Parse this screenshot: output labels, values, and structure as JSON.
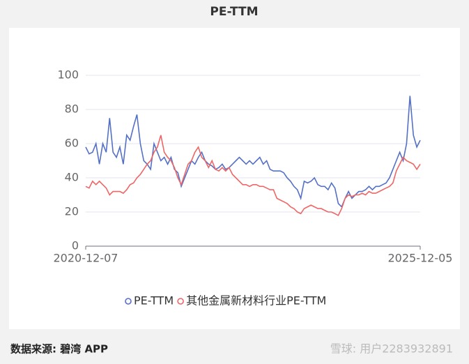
{
  "title": "PE-TTM",
  "footer": {
    "source": "数据来源: 碧湾 APP",
    "watermark": "雪球: 用户2283932891"
  },
  "chart_data": {
    "type": "line",
    "categories": [
      "2020-12-07",
      null,
      null,
      null,
      null,
      null,
      null,
      null,
      null,
      null,
      null,
      null,
      null,
      null,
      null,
      null,
      null,
      null,
      null,
      null,
      null,
      null,
      null,
      null,
      null,
      null,
      null,
      null,
      null,
      null,
      null,
      null,
      null,
      null,
      null,
      null,
      null,
      null,
      null,
      null,
      null,
      null,
      null,
      null,
      null,
      null,
      null,
      null,
      null,
      null,
      null,
      null,
      null,
      null,
      null,
      null,
      null,
      null,
      null,
      null,
      null,
      null,
      null,
      null,
      null,
      null,
      null,
      null,
      null,
      null,
      null,
      null,
      null,
      null,
      null,
      null,
      null,
      null,
      null,
      null,
      null,
      null,
      null,
      null,
      null,
      null,
      null,
      null,
      null,
      null,
      null,
      null,
      null,
      null,
      null,
      null,
      null,
      null,
      "2025-12-05"
    ],
    "series": [
      {
        "name": "PE-TTM",
        "color": "#5470c6",
        "values": [
          58,
          54,
          55,
          60,
          48,
          60,
          55,
          75,
          55,
          52,
          58,
          48,
          65,
          62,
          70,
          77,
          60,
          50,
          48,
          45,
          60,
          55,
          50,
          52,
          48,
          52,
          45,
          43,
          35,
          40,
          45,
          50,
          48,
          52,
          55,
          50,
          48,
          47,
          45,
          46,
          48,
          45,
          46,
          48,
          50,
          52,
          50,
          48,
          50,
          48,
          50,
          52,
          48,
          50,
          45,
          44,
          44,
          44,
          43,
          40,
          38,
          35,
          33,
          28,
          38,
          37,
          38,
          40,
          36,
          35,
          35,
          33,
          37,
          34,
          25,
          23,
          28,
          32,
          28,
          30,
          32,
          32,
          33,
          35,
          33,
          35,
          35,
          36,
          37,
          40,
          45,
          50,
          55,
          50,
          60,
          88,
          65,
          58,
          62
        ]
      },
      {
        "name": "其他金属新材料行业PE-TTM",
        "color": "#ee6666",
        "values": [
          35,
          34,
          38,
          36,
          38,
          36,
          34,
          30,
          32,
          32,
          32,
          31,
          33,
          36,
          37,
          40,
          42,
          45,
          48,
          50,
          55,
          58,
          65,
          55,
          52,
          50,
          46,
          40,
          36,
          42,
          48,
          50,
          55,
          58,
          52,
          50,
          46,
          50,
          45,
          44,
          46,
          44,
          46,
          42,
          40,
          38,
          36,
          36,
          35,
          36,
          36,
          35,
          35,
          34,
          33,
          33,
          28,
          27,
          26,
          25,
          23,
          22,
          20,
          19,
          22,
          23,
          24,
          23,
          22,
          22,
          21,
          20,
          20,
          19,
          18,
          22,
          28,
          30,
          29,
          30,
          30,
          31,
          30,
          32,
          31,
          31,
          32,
          33,
          34,
          35,
          37,
          44,
          48,
          52,
          50,
          49,
          48,
          45,
          48
        ]
      }
    ],
    "ylim": [
      0,
      100
    ],
    "yticks": [
      0,
      20,
      40,
      60,
      80,
      100
    ],
    "grid": true
  }
}
